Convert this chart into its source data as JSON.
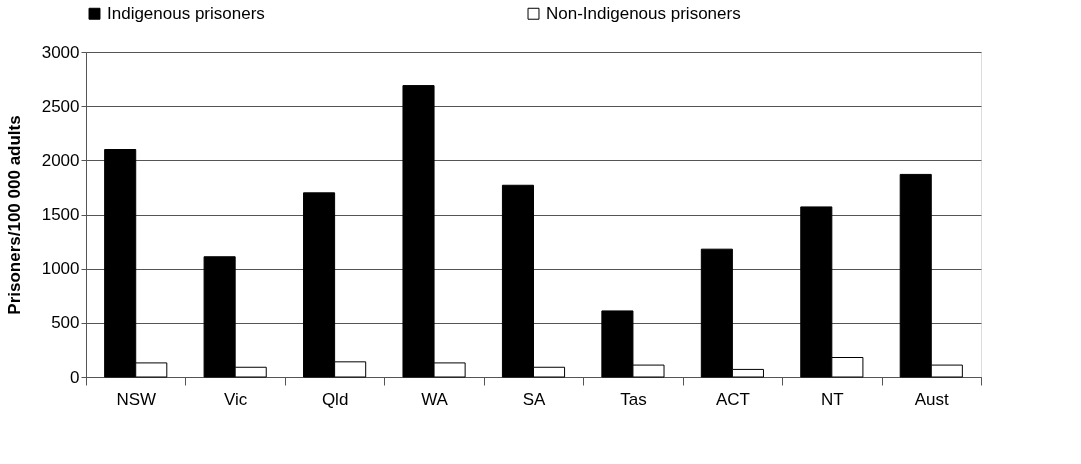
{
  "chart_data": {
    "type": "bar",
    "ylabel": "Prisoners/100 000 adults",
    "categories": [
      "NSW",
      "Vic",
      "Qld",
      "WA",
      "SA",
      "Tas",
      "ACT",
      "NT",
      "Aust"
    ],
    "series": [
      {
        "name": "Indigenous prisoners",
        "color": "#000000",
        "values": [
          2100,
          1110,
          1700,
          2690,
          1770,
          610,
          1180,
          1570,
          1870
        ]
      },
      {
        "name": "Non-Indigenous prisoners",
        "color": "#ffffff",
        "values": [
          130,
          90,
          140,
          130,
          90,
          110,
          70,
          180,
          110
        ]
      }
    ],
    "ylim": [
      0,
      3000
    ],
    "yticks": [
      0,
      500,
      1000,
      1500,
      2000,
      2500,
      3000
    ],
    "grid": "y",
    "legend": "top"
  }
}
